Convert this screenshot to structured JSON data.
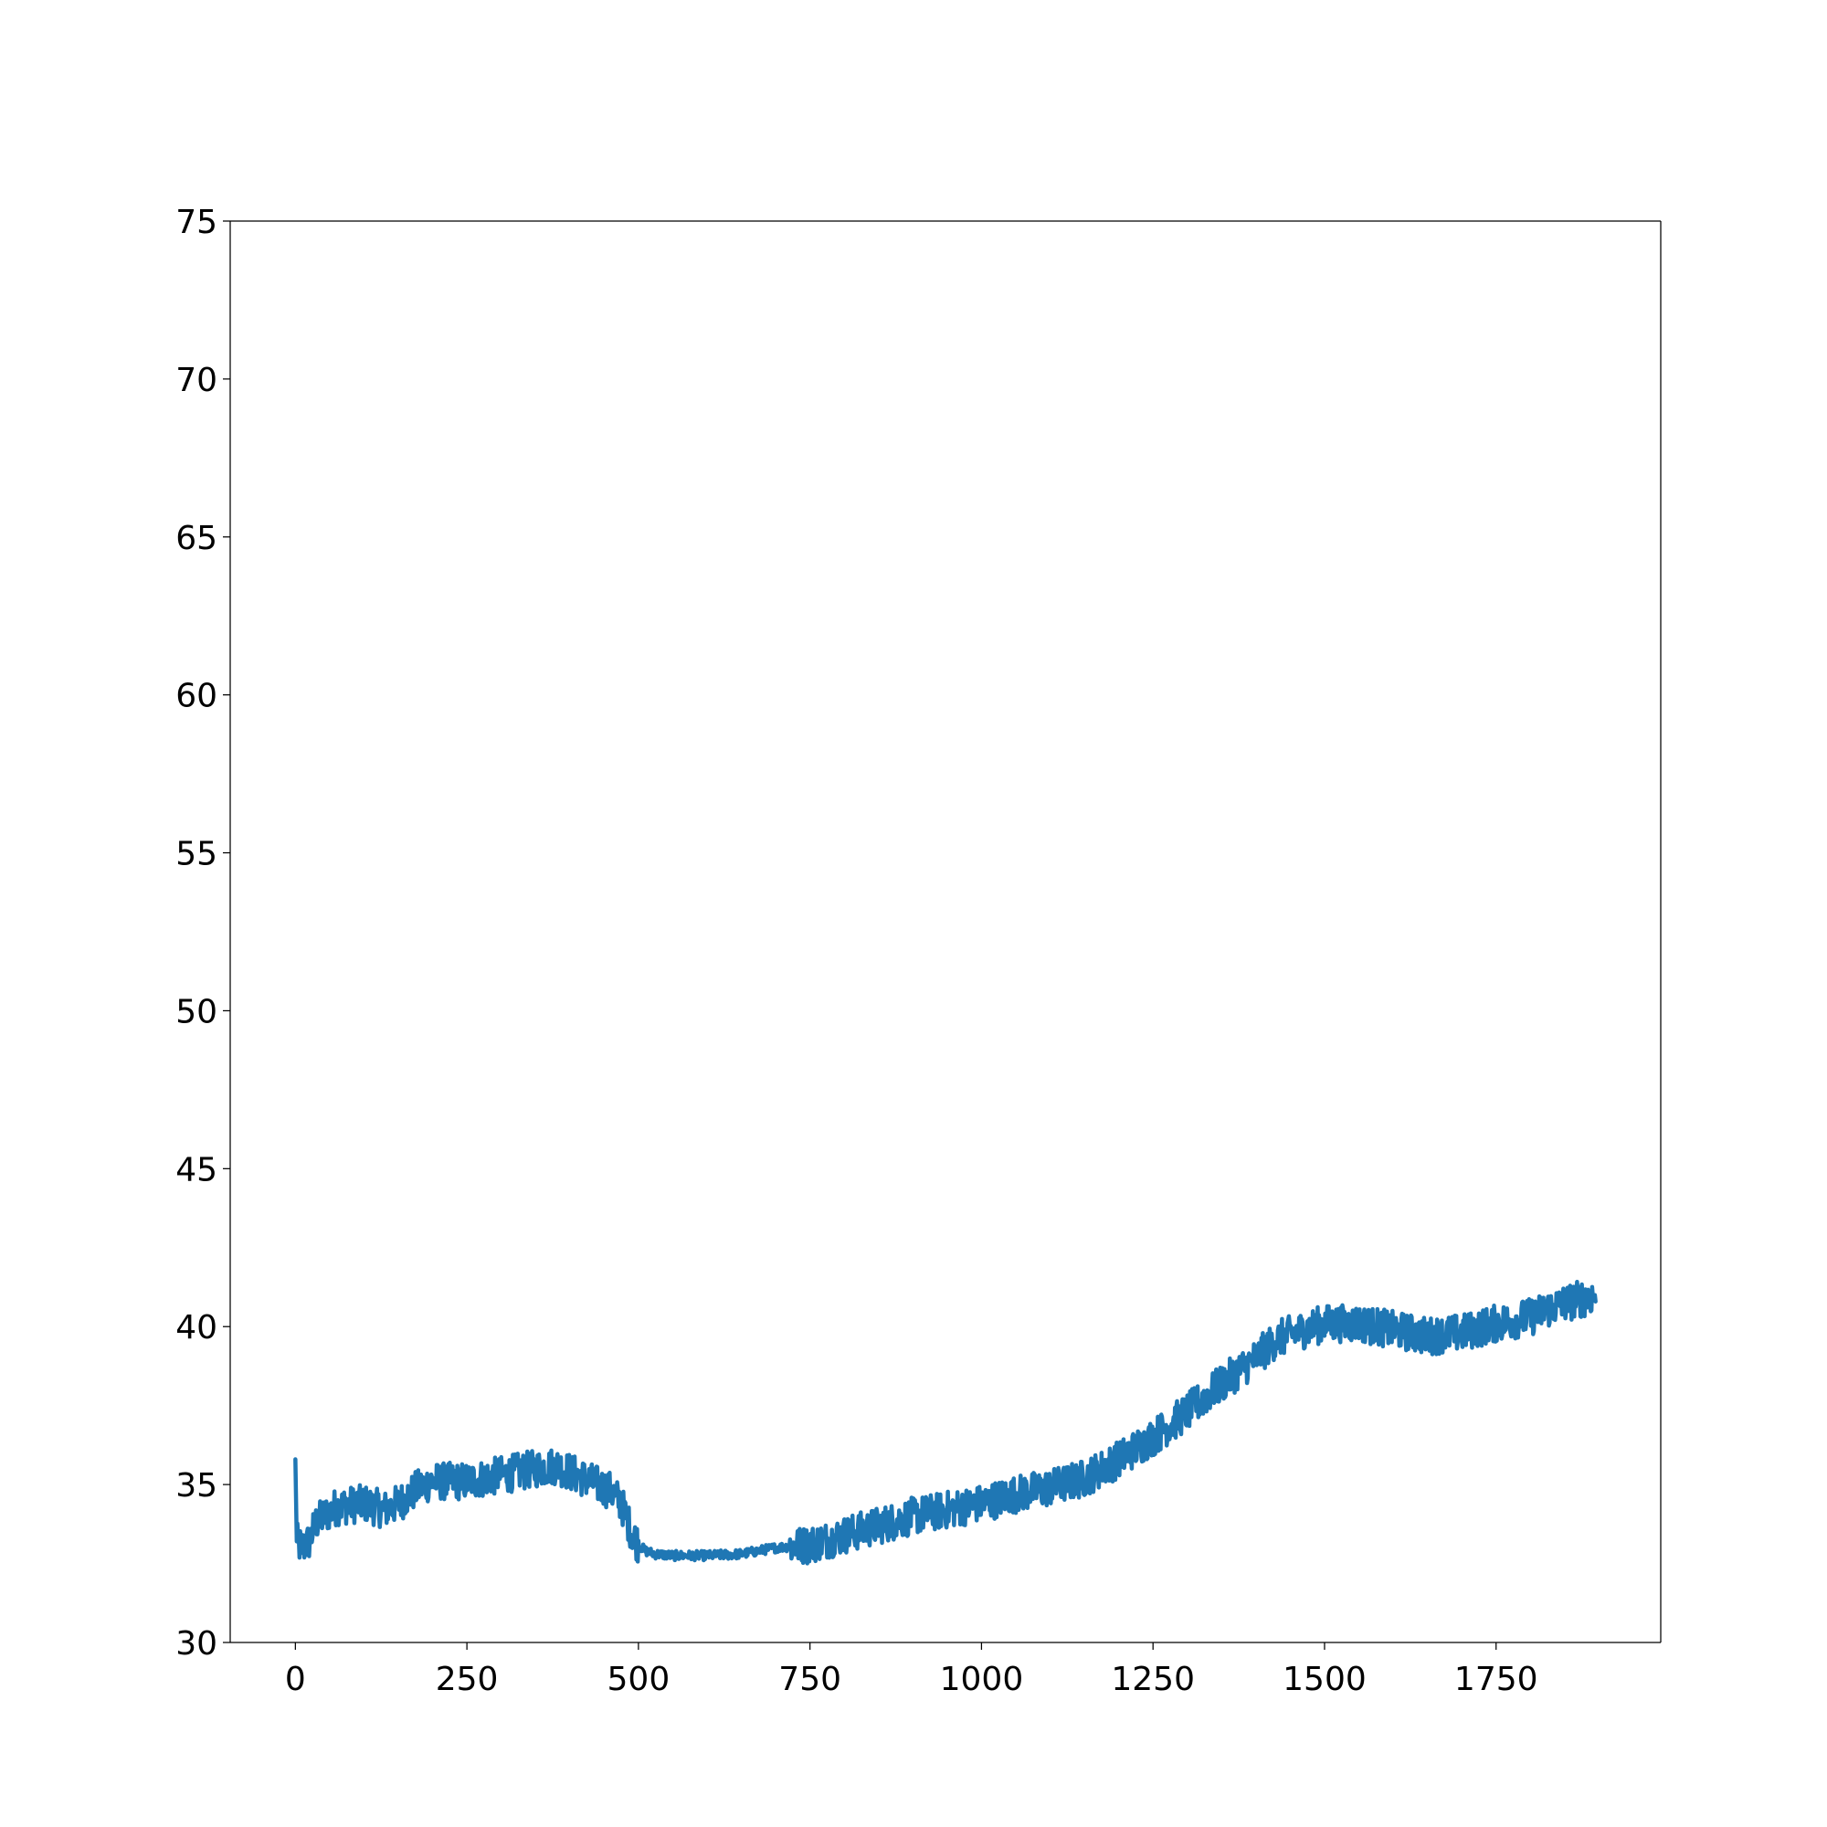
{
  "chart_data": {
    "type": "line",
    "title": "",
    "xlabel": "",
    "ylabel": "",
    "xlim": [
      -95,
      1990
    ],
    "ylim": [
      30,
      75
    ],
    "xticks": [
      0,
      250,
      500,
      750,
      1000,
      1250,
      1500,
      1750
    ],
    "yticks": [
      30,
      35,
      40,
      45,
      50,
      55,
      60,
      65,
      70,
      75
    ],
    "grid": false,
    "legend": "none",
    "series": [
      {
        "color": "#1f77b4",
        "n_points": 1896,
        "noise_amplitude": 0.6,
        "trend": {
          "x": [
            0,
            1,
            2,
            5,
            10,
            20,
            30,
            60,
            100,
            130,
            150,
            180,
            200,
            250,
            300,
            350,
            380,
            400,
            430,
            460,
            475,
            490,
            500,
            510,
            525,
            550,
            600,
            650,
            700,
            750,
            800,
            850,
            900,
            950,
            1000,
            1050,
            1100,
            1150,
            1200,
            1250,
            1300,
            1350,
            1400,
            1430,
            1470,
            1500,
            1550,
            1600,
            1650,
            1700,
            1750,
            1800,
            1830,
            1860,
            1895
          ],
          "y": [
            35.8,
            34.5,
            33.2,
            33.1,
            33.0,
            33.2,
            33.8,
            34.3,
            34.4,
            34.2,
            34.4,
            34.9,
            35.1,
            35.1,
            35.3,
            35.5,
            35.6,
            35.4,
            35.1,
            34.8,
            34.4,
            33.5,
            33.1,
            32.9,
            32.8,
            32.75,
            32.75,
            32.8,
            33.0,
            33.1,
            33.4,
            33.7,
            34.0,
            34.2,
            34.4,
            34.7,
            34.9,
            35.2,
            35.8,
            36.5,
            37.3,
            38.2,
            39.0,
            39.6,
            39.9,
            40.1,
            40.1,
            39.9,
            39.7,
            39.8,
            40.1,
            40.3,
            40.6,
            40.8,
            41.0
          ]
        }
      }
    ]
  }
}
